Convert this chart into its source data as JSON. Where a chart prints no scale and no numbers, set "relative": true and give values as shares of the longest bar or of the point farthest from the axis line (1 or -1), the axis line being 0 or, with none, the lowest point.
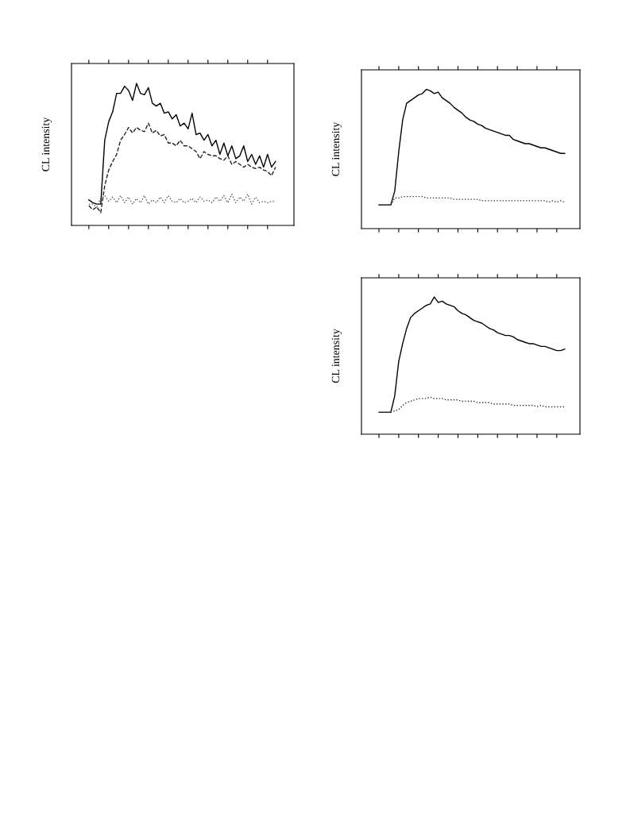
{
  "chart_data": [
    {
      "type": "line",
      "ylabel": "CL intensity",
      "relative": true,
      "grid": false,
      "marker": "none",
      "categories": [
        null,
        null,
        null,
        null,
        null,
        null,
        null,
        null,
        null,
        null,
        null,
        null,
        null,
        null,
        null,
        null,
        null,
        null,
        null,
        null,
        null,
        null,
        null,
        null,
        null,
        null,
        null,
        null,
        null,
        null,
        null,
        null,
        null,
        null,
        null,
        null,
        null,
        null,
        null,
        null,
        null,
        null,
        null,
        null,
        null,
        null,
        null,
        null
      ],
      "series": [
        {
          "color": "#000000",
          "line_style": "solid",
          "values": [
            0.18,
            0.16,
            0.15,
            0.15,
            0.6,
            0.73,
            0.8,
            0.93,
            0.93,
            0.98,
            0.95,
            0.88,
            1.0,
            0.93,
            0.92,
            0.97,
            0.86,
            0.84,
            0.86,
            0.79,
            0.8,
            0.75,
            0.78,
            0.7,
            0.72,
            0.68,
            0.79,
            0.64,
            0.65,
            0.6,
            0.64,
            0.56,
            0.6,
            0.5,
            0.58,
            0.49,
            0.56,
            0.47,
            0.49,
            0.56,
            0.45,
            0.5,
            0.43,
            0.49,
            0.41,
            0.5,
            0.41,
            0.45
          ]
        },
        {
          "color": "#222222",
          "line_style": "dashed",
          "values": [
            0.14,
            0.11,
            0.13,
            0.09,
            0.28,
            0.39,
            0.45,
            0.5,
            0.6,
            0.64,
            0.69,
            0.65,
            0.69,
            0.67,
            0.66,
            0.72,
            0.65,
            0.67,
            0.63,
            0.64,
            0.58,
            0.58,
            0.56,
            0.6,
            0.56,
            0.56,
            0.54,
            0.52,
            0.47,
            0.52,
            0.5,
            0.49,
            0.49,
            0.47,
            0.46,
            0.49,
            0.43,
            0.45,
            0.43,
            0.41,
            0.43,
            0.41,
            0.4,
            0.41,
            0.39,
            0.38,
            0.35,
            0.41
          ]
        },
        {
          "color": "#555555",
          "line_style": "dotted",
          "values": [
            0.15,
            0.15,
            0.13,
            0.19,
            0.21,
            0.17,
            0.2,
            0.16,
            0.21,
            0.16,
            0.2,
            0.15,
            0.19,
            0.16,
            0.21,
            0.15,
            0.18,
            0.16,
            0.2,
            0.16,
            0.21,
            0.17,
            0.16,
            0.19,
            0.16,
            0.17,
            0.19,
            0.16,
            0.2,
            0.17,
            0.18,
            0.16,
            0.2,
            0.17,
            0.21,
            0.16,
            0.22,
            0.16,
            0.2,
            0.17,
            0.22,
            0.15,
            0.2,
            0.16,
            0.17,
            0.16,
            0.17,
            0.17
          ]
        }
      ]
    },
    {
      "type": "line",
      "ylabel": "CL intensity",
      "relative": true,
      "grid": false,
      "marker": "none",
      "categories": [
        null,
        null,
        null,
        null,
        null,
        null,
        null,
        null,
        null,
        null,
        null,
        null,
        null,
        null,
        null,
        null,
        null,
        null,
        null,
        null,
        null,
        null,
        null,
        null,
        null,
        null,
        null,
        null,
        null,
        null,
        null,
        null,
        null,
        null,
        null,
        null,
        null,
        null,
        null,
        null,
        null,
        null,
        null,
        null,
        null,
        null,
        null,
        null
      ],
      "series": [
        {
          "color": "#000000",
          "line_style": "solid",
          "values": [
            0.17,
            0.17,
            0.17,
            0.17,
            0.27,
            0.55,
            0.78,
            0.9,
            0.92,
            0.94,
            0.96,
            0.97,
            1.0,
            0.99,
            0.97,
            0.98,
            0.94,
            0.92,
            0.9,
            0.87,
            0.85,
            0.83,
            0.8,
            0.78,
            0.77,
            0.75,
            0.74,
            0.72,
            0.71,
            0.7,
            0.69,
            0.68,
            0.67,
            0.67,
            0.64,
            0.63,
            0.62,
            0.61,
            0.61,
            0.6,
            0.59,
            0.58,
            0.58,
            0.57,
            0.56,
            0.55,
            0.54,
            0.54
          ]
        },
        {
          "color": "#333333",
          "line_style": "dotted",
          "values": [
            0.17,
            0.17,
            0.17,
            0.17,
            0.22,
            0.22,
            0.23,
            0.23,
            0.23,
            0.23,
            0.23,
            0.23,
            0.22,
            0.22,
            0.22,
            0.22,
            0.22,
            0.22,
            0.22,
            0.21,
            0.21,
            0.21,
            0.21,
            0.21,
            0.21,
            0.21,
            0.2,
            0.2,
            0.2,
            0.2,
            0.2,
            0.2,
            0.2,
            0.2,
            0.2,
            0.2,
            0.2,
            0.2,
            0.2,
            0.2,
            0.2,
            0.2,
            0.2,
            0.19,
            0.2,
            0.19,
            0.2,
            0.19
          ]
        }
      ]
    },
    {
      "type": "line",
      "ylabel": "CL intensity",
      "relative": true,
      "grid": false,
      "marker": "none",
      "categories": [
        null,
        null,
        null,
        null,
        null,
        null,
        null,
        null,
        null,
        null,
        null,
        null,
        null,
        null,
        null,
        null,
        null,
        null,
        null,
        null,
        null,
        null,
        null,
        null,
        null,
        null,
        null,
        null,
        null,
        null,
        null,
        null,
        null,
        null,
        null,
        null,
        null,
        null,
        null,
        null,
        null,
        null,
        null,
        null,
        null,
        null,
        null,
        null
      ],
      "series": [
        {
          "color": "#000000",
          "line_style": "solid",
          "values": [
            0.16,
            0.16,
            0.16,
            0.16,
            0.28,
            0.53,
            0.66,
            0.77,
            0.85,
            0.88,
            0.9,
            0.92,
            0.94,
            0.95,
            1.0,
            0.96,
            0.97,
            0.95,
            0.94,
            0.93,
            0.9,
            0.88,
            0.87,
            0.85,
            0.83,
            0.82,
            0.81,
            0.79,
            0.77,
            0.76,
            0.74,
            0.73,
            0.72,
            0.72,
            0.71,
            0.69,
            0.68,
            0.67,
            0.66,
            0.66,
            0.65,
            0.64,
            0.64,
            0.63,
            0.62,
            0.61,
            0.61,
            0.62
          ]
        },
        {
          "color": "#333333",
          "line_style": "dotted",
          "values": [
            0.16,
            0.16,
            0.16,
            0.16,
            0.17,
            0.18,
            0.21,
            0.23,
            0.24,
            0.25,
            0.26,
            0.26,
            0.26,
            0.27,
            0.26,
            0.26,
            0.26,
            0.25,
            0.25,
            0.25,
            0.25,
            0.24,
            0.24,
            0.24,
            0.24,
            0.23,
            0.23,
            0.23,
            0.23,
            0.22,
            0.22,
            0.22,
            0.22,
            0.22,
            0.21,
            0.21,
            0.21,
            0.21,
            0.21,
            0.21,
            0.2,
            0.21,
            0.2,
            0.2,
            0.2,
            0.2,
            0.2,
            0.2
          ]
        }
      ]
    }
  ]
}
